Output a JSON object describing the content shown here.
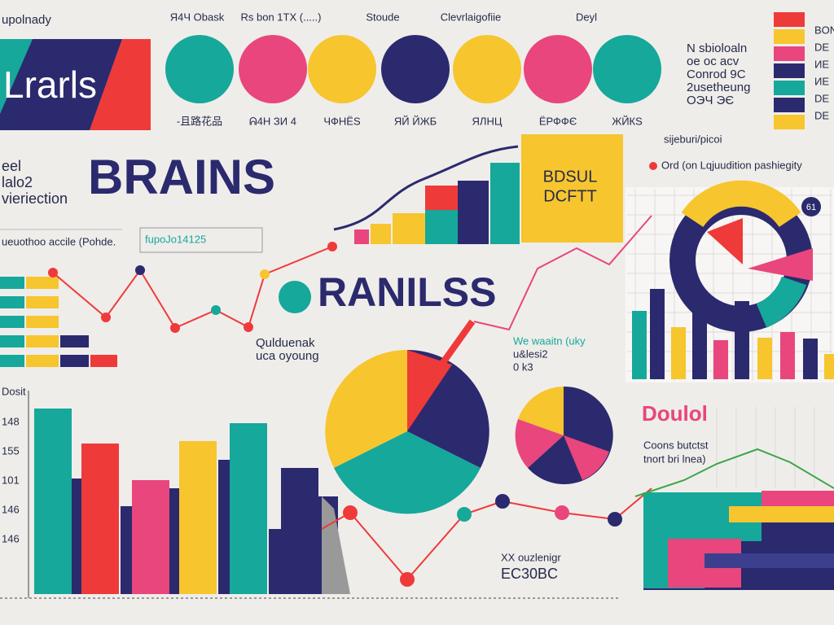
{
  "header": {
    "title": "upolnady",
    "banner": "Lrarls"
  },
  "circles": {
    "labels_top": [
      "Я4Ч Obask",
      "Rs bon 1TX (.....)",
      "Stoude",
      "Clevrlaigofiie",
      "Deyl"
    ],
    "labels_bottom": [
      "-且路花品",
      "ᕱ4H ЗИ 4",
      "ЧФНЁS",
      "ЯЙ ЙЖБ",
      "ЯЛНЦ",
      "ЁРФФЄ",
      "ЖЙКS"
    ]
  },
  "legend_list": [
    "BON",
    "DE",
    "ИЕ",
    "ИЕ",
    "DE",
    "DE"
  ],
  "notes": {
    "top_right": [
      "N sbioloaln",
      "oe oc acv",
      "Conrod 9C",
      "2usetheung",
      "ОЭЧ ЭЄ"
    ],
    "sub": "sijeburi/picoi",
    "legend": "Ord (on Lqjuudition pashiegity",
    "left": [
      "eel",
      "lalo2",
      "vieriection"
    ],
    "axis_caption": "ueuothoo accile (Pohde.",
    "code": "fupoJo14125",
    "mid": [
      "Qulduenak",
      "uca oyoung"
    ],
    "center_right": [
      "We waaitn (uky",
      "u&lesi2",
      "0 k3"
    ],
    "right_sub": [
      "Coons butctst",
      "tnort bri lnea)"
    ],
    "bottom": [
      "XX ouzlenigr",
      "EC30BC"
    ],
    "badge": "61"
  },
  "headings": {
    "brains": "BRAINS",
    "box": [
      "BDSUL",
      "DCFTT"
    ],
    "ranilss": "RANILSS",
    "doulol": "Doulol"
  },
  "bottom_chart": {
    "axis_title": "Dosit",
    "ticks": [
      "148",
      "155",
      "101",
      "146",
      "146"
    ]
  }
}
